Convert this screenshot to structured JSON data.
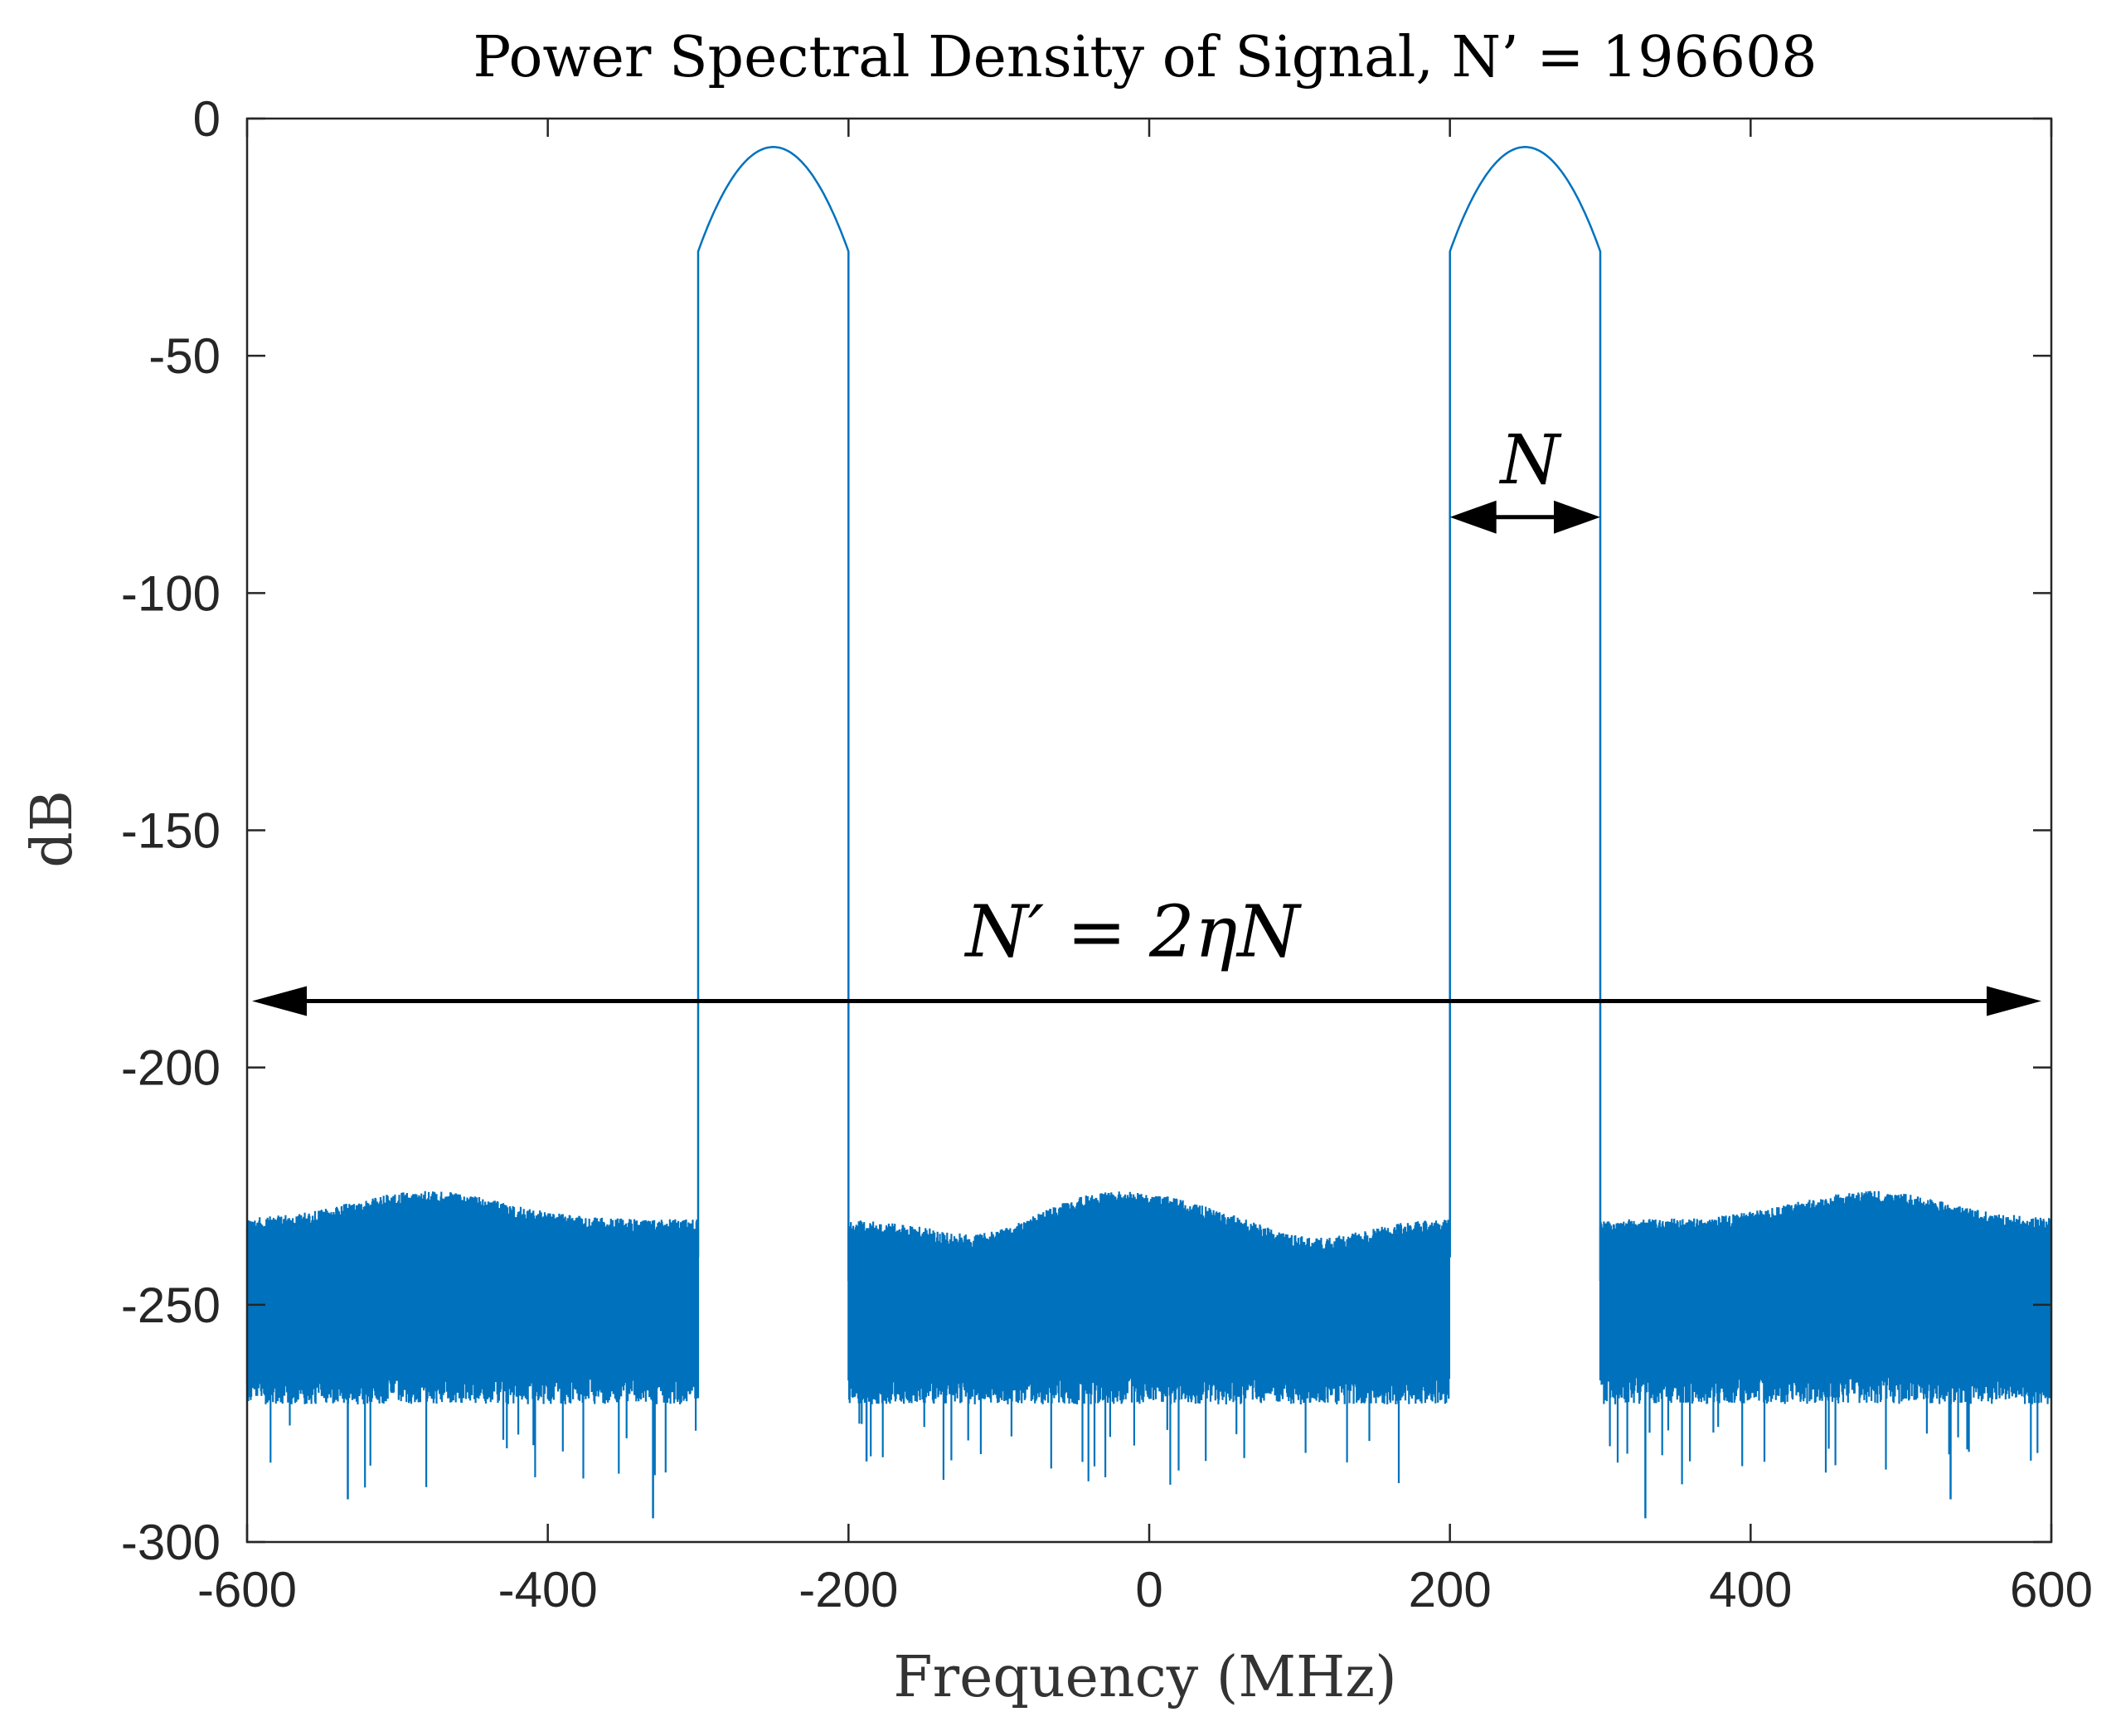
{
  "chart_data": {
    "type": "line",
    "title": "Power Spectral Density of Signal, N’ = 196608",
    "xlabel": "Frequency (MHz)",
    "ylabel": "dB",
    "xlim": [
      -600,
      600
    ],
    "ylim": [
      -300,
      0
    ],
    "xticks": [
      -600,
      -400,
      -200,
      0,
      200,
      400,
      600
    ],
    "yticks": [
      0,
      -50,
      -100,
      -150,
      -200,
      -250,
      -300
    ],
    "grid": false,
    "series": [
      {
        "name": "PSD",
        "color": "#0072BD",
        "bands": [
          {
            "start": -300,
            "end": -200,
            "edge_db": -28,
            "peak_db": -6,
            "peak_freq": -250
          },
          {
            "start": 200,
            "end": 300,
            "edge_db": -28,
            "peak_db": -6,
            "peak_freq": 250
          }
        ],
        "noise_floor": {
          "upper_envelope_db": -232,
          "upper_hump_db": -226,
          "hump_centers": [
            -480,
            -20,
            480
          ],
          "dip_centers": [
            -110,
            110
          ],
          "dip_db": -236,
          "typical_lower_db": -265,
          "min_spikes": [
            {
              "x": -533,
              "y": -291
            },
            {
              "x": -330,
              "y": -295
            },
            {
              "x": -188,
              "y": -283
            },
            {
              "x": 330,
              "y": -295
            },
            {
              "x": 533,
              "y": -291
            }
          ]
        }
      }
    ],
    "annotations": [
      {
        "name": "bandwidth-N",
        "label": "N",
        "from_x": 200,
        "to_x": 300,
        "y": -84,
        "label_y": -72
      },
      {
        "name": "total-span",
        "label": "N′ = 2ηN",
        "from_x": -600,
        "to_x": 600,
        "y": -186,
        "label_y": -172
      }
    ]
  }
}
